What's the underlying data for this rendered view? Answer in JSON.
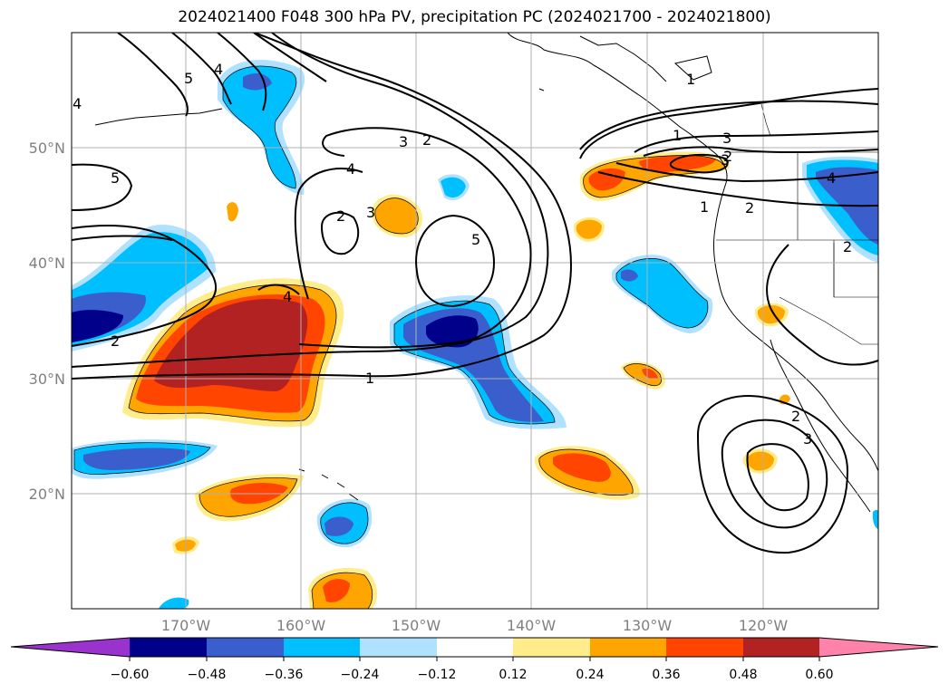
{
  "title": "2024021400 F048 300 hPa PV, precipitation PC (2024021700 - 2024021800)",
  "lat_labels": [
    "50°N",
    "40°N",
    "30°N",
    "20°N"
  ],
  "lon_labels": [
    "170°W",
    "160°W",
    "150°W",
    "140°W",
    "130°W",
    "120°W"
  ],
  "colorbar": {
    "ticks": [
      "−0.60",
      "−0.48",
      "−0.36",
      "−0.24",
      "−0.12",
      "0.12",
      "0.24",
      "0.36",
      "0.48",
      "0.60"
    ],
    "colors": [
      "#9a32cd",
      "#00008b",
      "#3a5fcd",
      "#00bfff",
      "#b0e2ff",
      "#ffffff",
      "#ffec8b",
      "#ffa500",
      "#ff4500",
      "#b22222",
      "#ff82ab"
    ]
  },
  "contour_labels": [
    "5",
    "4",
    "4",
    "5",
    "3",
    "2",
    "4",
    "3",
    "2",
    "5",
    "4",
    "1",
    "2",
    "1",
    "3",
    "1",
    "2",
    "3",
    "2",
    "3",
    "4",
    "1",
    "2",
    "2"
  ],
  "colors": {
    "pos_light": "#ffec8b",
    "pos_mid": "#ffa500",
    "pos_high": "#ff4500",
    "pos_max": "#b22222",
    "neg_light": "#b0e2ff",
    "neg_mid": "#00bfff",
    "neg_high": "#3a5fcd",
    "neg_max": "#00008b"
  }
}
